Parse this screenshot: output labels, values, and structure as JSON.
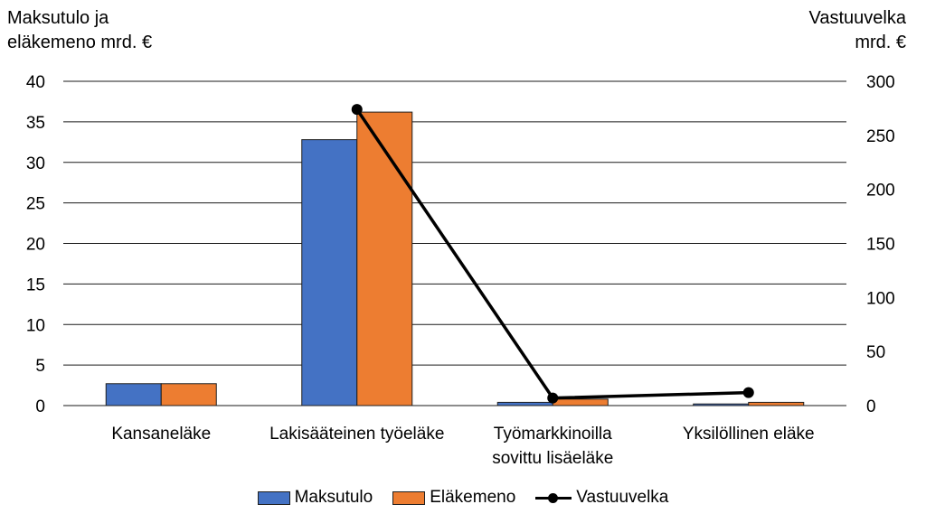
{
  "chart_data": {
    "type": "bar",
    "categories": [
      [
        "Kansaneläke"
      ],
      [
        "Lakisääteinen työeläke"
      ],
      [
        "Työmarkkinoilla",
        "sovittu lisäeläke"
      ],
      [
        "Yksilöllinen eläke"
      ]
    ],
    "series": [
      {
        "name": "Maksutulo",
        "type": "bar",
        "axis": "left",
        "color": "#4472C4",
        "values": [
          2.7,
          32.8,
          0.4,
          0.2
        ]
      },
      {
        "name": "Eläkemeno",
        "type": "bar",
        "axis": "left",
        "color": "#ED7D31",
        "values": [
          2.7,
          36.2,
          0.8,
          0.4
        ]
      },
      {
        "name": "Vastuuvelka",
        "type": "line",
        "axis": "right",
        "color": "#000000",
        "values": [
          null,
          274,
          7,
          12
        ]
      }
    ],
    "left_axis": {
      "label": "Maksutulo ja\neläkemeno mrd. €",
      "ylim": [
        0,
        40
      ],
      "ticks": [
        0,
        5,
        10,
        15,
        20,
        25,
        30,
        35,
        40
      ]
    },
    "right_axis": {
      "label": "Vastuuvelka\nmrd. €",
      "ylim": [
        0,
        300
      ],
      "ticks": [
        0,
        50,
        100,
        150,
        200,
        250,
        300
      ]
    },
    "grid": true,
    "legend_position": "bottom"
  }
}
